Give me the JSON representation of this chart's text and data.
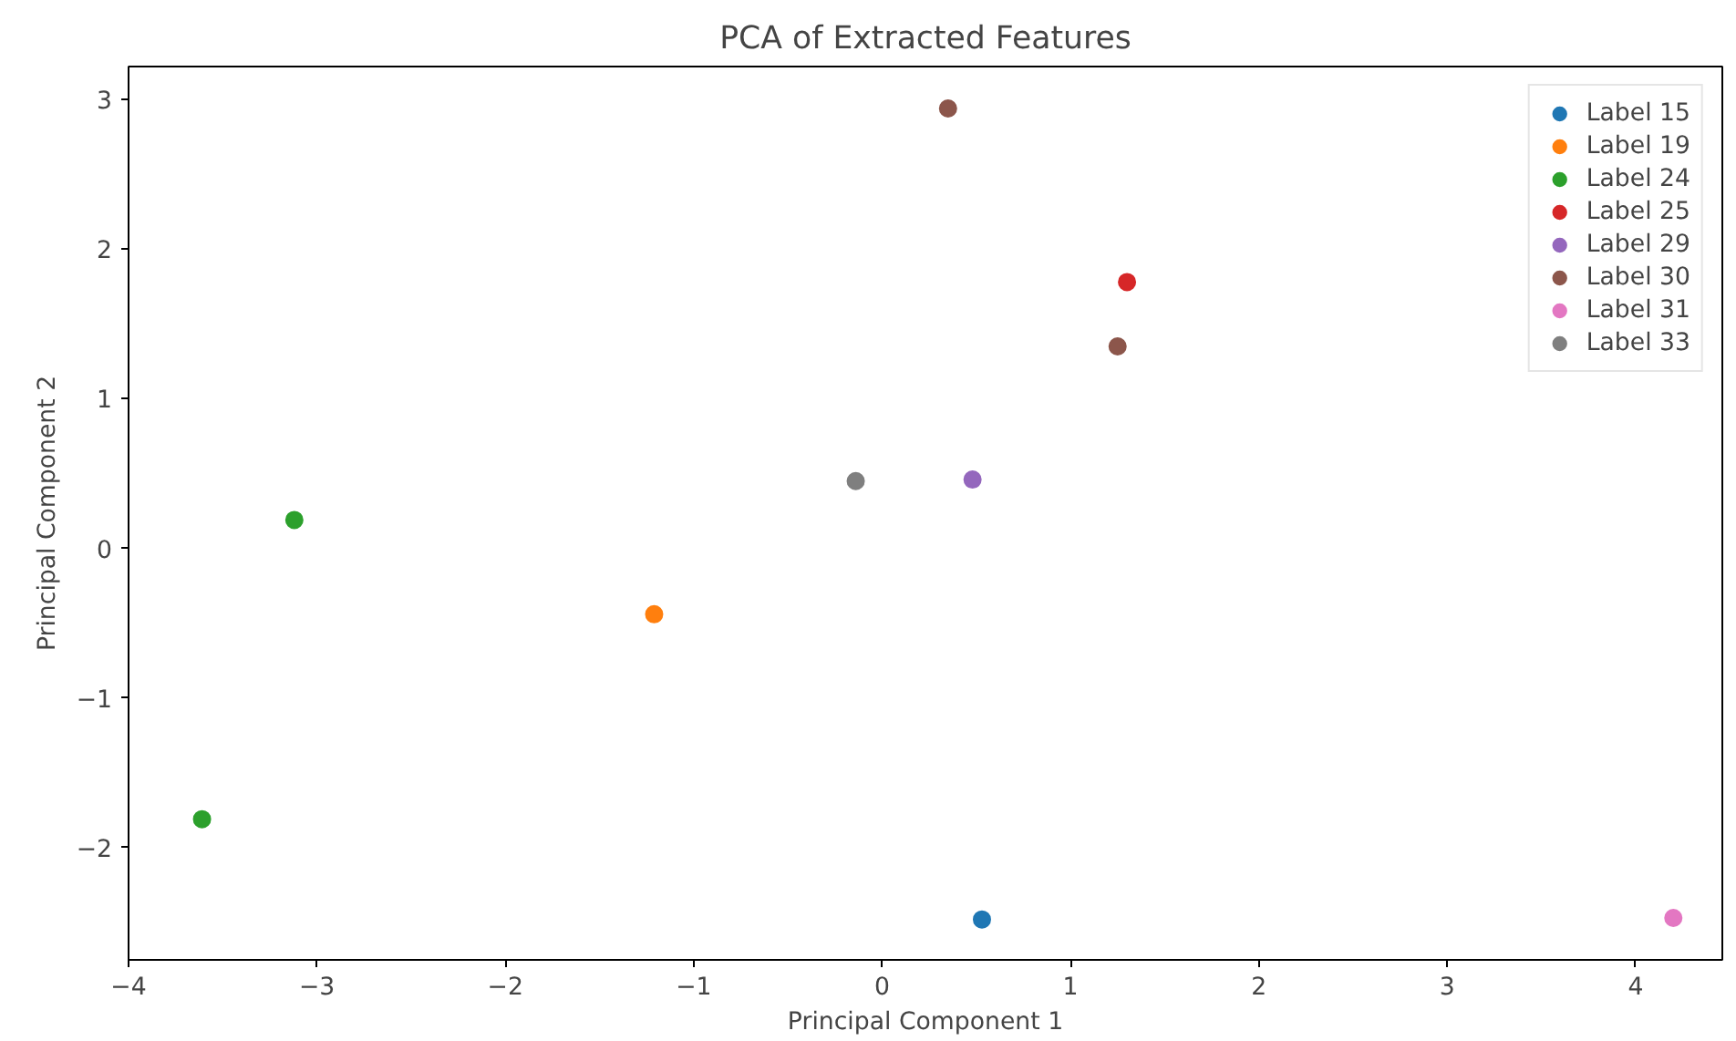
{
  "chart_data": {
    "type": "scatter",
    "title": "PCA of Extracted Features",
    "xlabel": "Principal Component 1",
    "ylabel": "Principal Component 2",
    "xlim": [
      -4,
      4.46
    ],
    "ylim": [
      -2.75,
      3.22
    ],
    "xticks": [
      -4,
      -3,
      -2,
      -1,
      0,
      1,
      2,
      3,
      4
    ],
    "yticks": [
      -2,
      -1,
      0,
      1,
      2,
      3
    ],
    "grid": false,
    "legend": "top right",
    "marker": "circle",
    "series": [
      {
        "name": "Label 15",
        "color": "#1f77b4",
        "x": [
          0.53
        ],
        "values": [
          -2.48
        ]
      },
      {
        "name": "Label 19",
        "color": "#ff7f0e",
        "x": [
          -1.21
        ],
        "values": [
          -0.44
        ]
      },
      {
        "name": "Label 24",
        "color": "#2ca02c",
        "x": [
          -3.12,
          -3.61
        ],
        "values": [
          0.19,
          -1.81
        ]
      },
      {
        "name": "Label 25",
        "color": "#d62728",
        "x": [
          1.3
        ],
        "values": [
          1.78
        ]
      },
      {
        "name": "Label 29",
        "color": "#9467bd",
        "x": [
          0.48
        ],
        "values": [
          0.46
        ]
      },
      {
        "name": "Label 30",
        "color": "#8c564b",
        "x": [
          0.35,
          1.25
        ],
        "values": [
          2.94,
          1.35
        ]
      },
      {
        "name": "Label 31",
        "color": "#e377c2",
        "x": [
          4.2
        ],
        "values": [
          -2.47
        ]
      },
      {
        "name": "Label 33",
        "color": "#7f7f7f",
        "x": [
          -0.14
        ],
        "values": [
          0.45
        ]
      }
    ]
  }
}
